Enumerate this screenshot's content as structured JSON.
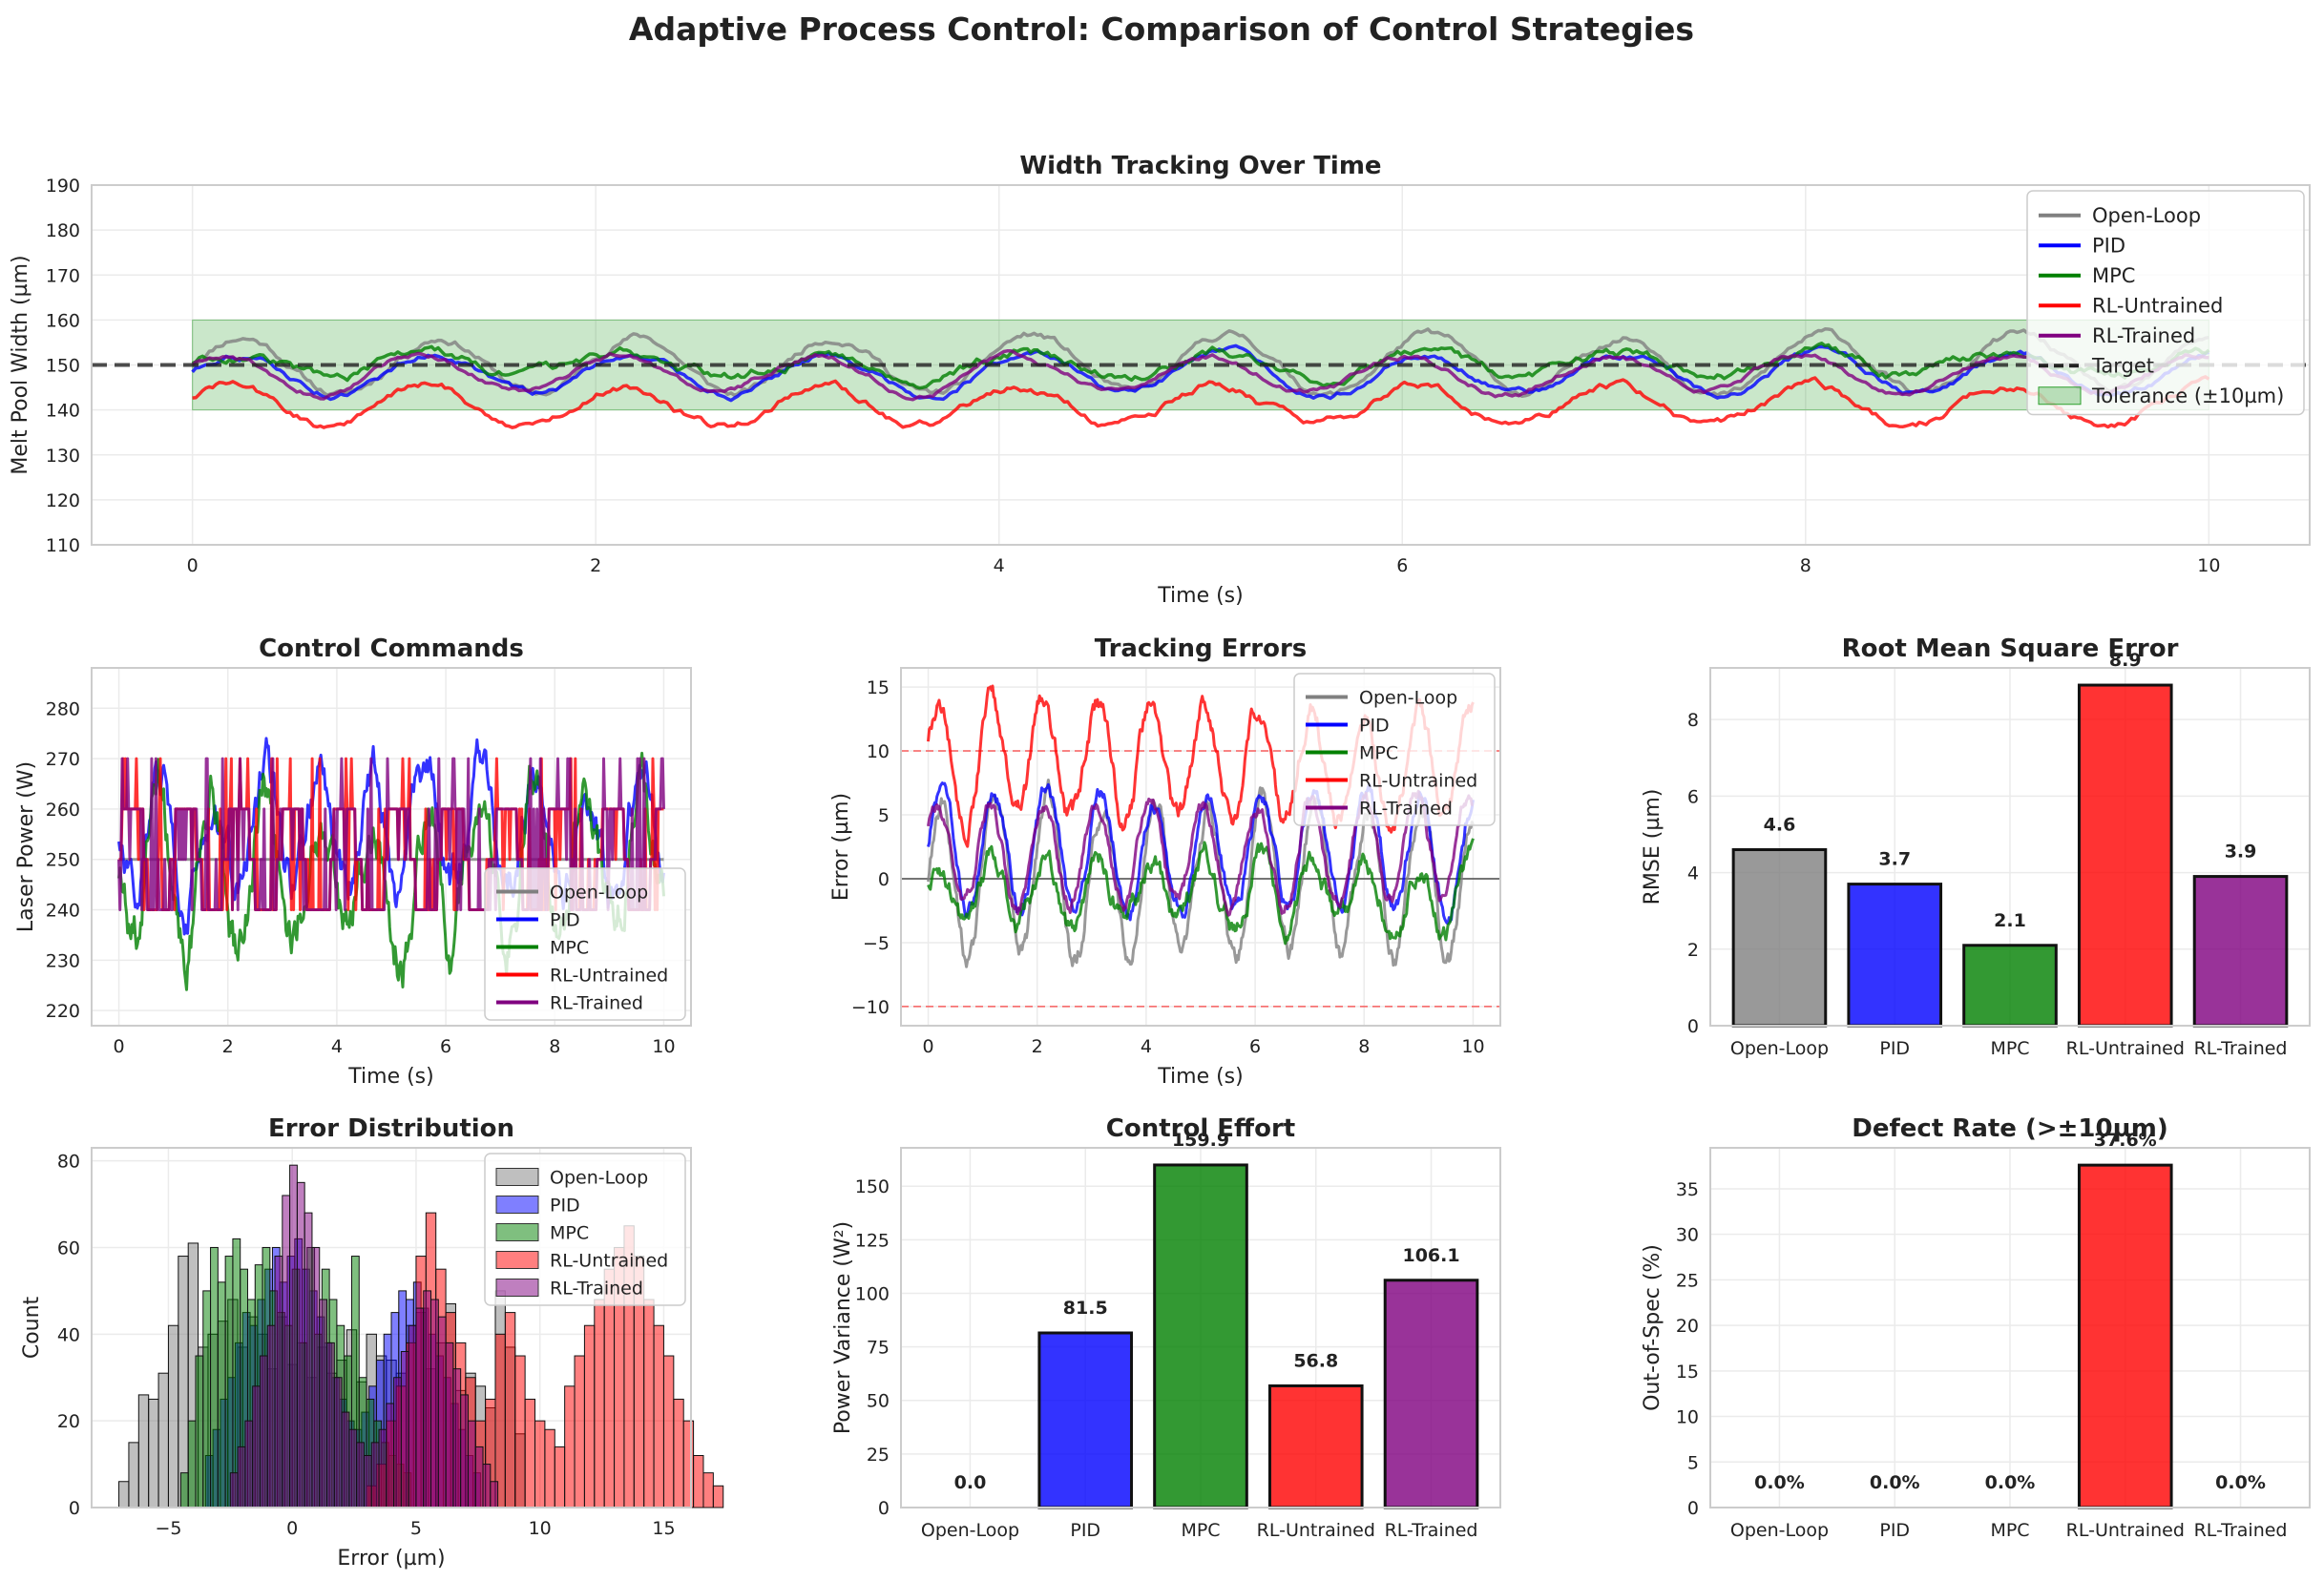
{
  "figure": {
    "title": "Adaptive Process Control: Comparison of Control Strategies"
  },
  "colors": {
    "Open-Loop": "#808080",
    "PID": "#0000ff",
    "MPC": "#008000",
    "RL-Untrained": "#ff0000",
    "RL-Trained": "#800080",
    "grid": "#ebebeb",
    "frame": "#cccccc",
    "tolerance": "#2ca02c"
  },
  "chart_data": [
    {
      "id": "width",
      "type": "line",
      "title": "Width Tracking Over Time",
      "xlabel": "Time (s)",
      "ylabel": "Melt Pool Width (µm)",
      "xlim": [
        -0.5,
        10.5
      ],
      "ylim": [
        110,
        190
      ],
      "xticks": [
        0,
        2,
        4,
        6,
        8,
        10
      ],
      "yticks": [
        110,
        120,
        130,
        140,
        150,
        160,
        170,
        180,
        190
      ],
      "target": 150,
      "tolerance": [
        140,
        160
      ],
      "legend_position": "upper right",
      "legend": [
        "Open-Loop",
        "PID",
        "MPC",
        "RL-Untrained",
        "RL-Trained",
        "Target",
        "Tolerance (±10µm)"
      ],
      "series": [
        {
          "name": "Open-Loop",
          "center": 150,
          "amp": 6.5,
          "noise": 1.0
        },
        {
          "name": "PID",
          "center": 148,
          "amp": 4.5,
          "noise": 0.8
        },
        {
          "name": "MPC",
          "center": 150,
          "amp": 2.5,
          "noise": 1.2
        },
        {
          "name": "RL-Untrained",
          "center": 141,
          "amp": 4.5,
          "noise": 1.0
        },
        {
          "name": "RL-Trained",
          "center": 148,
          "amp": 4.0,
          "noise": 0.7
        }
      ]
    },
    {
      "id": "commands",
      "type": "line",
      "title": "Control Commands",
      "xlabel": "Time (s)",
      "ylabel": "Laser Power (W)",
      "xlim": [
        -0.5,
        10.5
      ],
      "ylim": [
        217,
        288
      ],
      "xticks": [
        0,
        2,
        4,
        6,
        8,
        10
      ],
      "yticks": [
        220,
        230,
        240,
        250,
        260,
        270,
        280
      ],
      "legend_position": "lower right",
      "legend": [
        "Open-Loop",
        "PID",
        "MPC",
        "RL-Untrained",
        "RL-Trained"
      ],
      "series": [
        {
          "name": "Open-Loop",
          "constant": 250
        },
        {
          "name": "PID",
          "center": 255,
          "amp": 12,
          "noise": 4
        },
        {
          "name": "MPC",
          "center": 248,
          "amp": 14,
          "noise": 5
        },
        {
          "name": "RL-Untrained",
          "levels": [
            240,
            250,
            260,
            270
          ]
        },
        {
          "name": "RL-Trained",
          "levels": [
            240,
            250,
            260,
            270
          ]
        }
      ]
    },
    {
      "id": "errors",
      "type": "line",
      "title": "Tracking Errors",
      "xlabel": "Time (s)",
      "ylabel": "Error (µm)",
      "xlim": [
        -0.5,
        10.5
      ],
      "ylim": [
        -11.5,
        16.5
      ],
      "xticks": [
        0,
        2,
        4,
        6,
        8,
        10
      ],
      "yticks": [
        -10,
        -5,
        0,
        5,
        10,
        15
      ],
      "tolerance_lines": [
        -10,
        10
      ],
      "legend_position": "upper right",
      "legend": [
        "Open-Loop",
        "PID",
        "MPC",
        "RL-Untrained",
        "RL-Trained"
      ],
      "series": [
        {
          "name": "Open-Loop",
          "center": 0,
          "amp": 6.0,
          "noise": 1.0
        },
        {
          "name": "PID",
          "center": 2,
          "amp": 4.5,
          "noise": 0.8
        },
        {
          "name": "MPC",
          "center": -1,
          "amp": 2.5,
          "noise": 1.0
        },
        {
          "name": "RL-Untrained",
          "center": 9,
          "amp": 4.5,
          "noise": 1.0
        },
        {
          "name": "RL-Trained",
          "center": 2,
          "amp": 4.0,
          "noise": 0.7
        }
      ]
    },
    {
      "id": "rmse",
      "type": "bar",
      "title": "Root Mean Square Error",
      "ylabel": "RMSE (µm)",
      "categories": [
        "Open-Loop",
        "PID",
        "MPC",
        "RL-Untrained",
        "RL-Trained"
      ],
      "values": [
        4.6,
        3.7,
        2.1,
        8.9,
        3.9
      ],
      "labels": [
        "4.6",
        "3.7",
        "2.1",
        "8.9",
        "3.9"
      ],
      "ylim": [
        0,
        9.35
      ],
      "yticks": [
        0,
        2,
        4,
        6,
        8
      ]
    },
    {
      "id": "distribution",
      "type": "histogram",
      "title": "Error Distribution",
      "xlabel": "Error (µm)",
      "ylabel": "Count",
      "xlim": [
        -8.1,
        16.1
      ],
      "ylim": [
        0,
        83
      ],
      "xticks": [
        -5,
        0,
        5,
        10,
        15
      ],
      "yticks": [
        0,
        20,
        40,
        60,
        80
      ],
      "legend_position": "upper right",
      "legend": [
        "Open-Loop",
        "PID",
        "MPC",
        "RL-Untrained",
        "RL-Trained"
      ],
      "series": [
        {
          "name": "Open-Loop",
          "start": -7,
          "width": 0.4,
          "counts": [
            6,
            15,
            26,
            25,
            31,
            42,
            58,
            61,
            37,
            40,
            43,
            48,
            37,
            44,
            40,
            32,
            44,
            33,
            38,
            30,
            37,
            31,
            34,
            41,
            29,
            40,
            35,
            34,
            31,
            42,
            45,
            32,
            38,
            47,
            27,
            31,
            28,
            23,
            50,
            37,
            17
          ]
        },
        {
          "name": "PID",
          "start": -3.5,
          "width": 0.3,
          "counts": [
            12,
            18,
            25,
            30,
            38,
            45,
            42,
            48,
            55,
            60,
            52,
            58,
            62,
            55,
            50,
            44,
            38,
            30,
            25,
            20,
            18,
            22,
            28,
            34,
            40,
            45,
            50,
            48,
            52,
            46,
            40,
            35,
            30,
            24,
            18,
            12,
            8
          ]
        },
        {
          "name": "MPC",
          "start": -4.5,
          "width": 0.3,
          "counts": [
            8,
            20,
            35,
            50,
            60,
            52,
            58,
            62,
            55,
            48,
            56,
            60,
            50,
            45,
            42,
            55,
            38,
            60,
            40,
            55,
            48,
            42,
            35,
            58,
            30,
            25,
            20,
            15,
            12,
            10,
            8
          ]
        },
        {
          "name": "RL-Untrained",
          "start": 3.0,
          "width": 0.4,
          "counts": [
            5,
            10,
            20,
            28,
            38,
            58,
            68,
            55,
            45,
            38,
            30,
            20,
            25,
            40,
            45,
            35,
            25,
            20,
            18,
            14,
            28,
            35,
            42,
            48,
            55,
            60,
            65,
            58,
            48,
            42,
            35,
            25,
            20,
            12,
            8,
            5
          ]
        },
        {
          "name": "RL-Trained",
          "start": -2.5,
          "width": 0.3,
          "counts": [
            8,
            14,
            20,
            28,
            35,
            42,
            58,
            72,
            79,
            75,
            68,
            60,
            48,
            38,
            30,
            22,
            18,
            15,
            12,
            15,
            18,
            24,
            30,
            36,
            42,
            46,
            50,
            48,
            44,
            38,
            32,
            26,
            20,
            14,
            10,
            6
          ]
        }
      ]
    },
    {
      "id": "effort",
      "type": "bar",
      "title": "Control Effort",
      "ylabel": "Power Variance (W²)",
      "categories": [
        "Open-Loop",
        "PID",
        "MPC",
        "RL-Untrained",
        "RL-Trained"
      ],
      "values": [
        0.0,
        81.5,
        159.9,
        56.8,
        106.1
      ],
      "labels": [
        "0.0",
        "81.5",
        "159.9",
        "56.8",
        "106.1"
      ],
      "ylim": [
        0,
        167.9
      ],
      "yticks": [
        0,
        25,
        50,
        75,
        100,
        125,
        150
      ]
    },
    {
      "id": "defect",
      "type": "bar",
      "title": "Defect Rate (>±10µm)",
      "ylabel": "Out-of-Spec (%)",
      "categories": [
        "Open-Loop",
        "PID",
        "MPC",
        "RL-Untrained",
        "RL-Trained"
      ],
      "values": [
        0.0,
        0.0,
        0.0,
        37.6,
        0.0
      ],
      "labels": [
        "0.0%",
        "0.0%",
        "0.0%",
        "37.6%",
        "0.0%"
      ],
      "ylim": [
        0,
        39.5
      ],
      "yticks": [
        0,
        5,
        10,
        15,
        20,
        25,
        30,
        35
      ]
    }
  ]
}
